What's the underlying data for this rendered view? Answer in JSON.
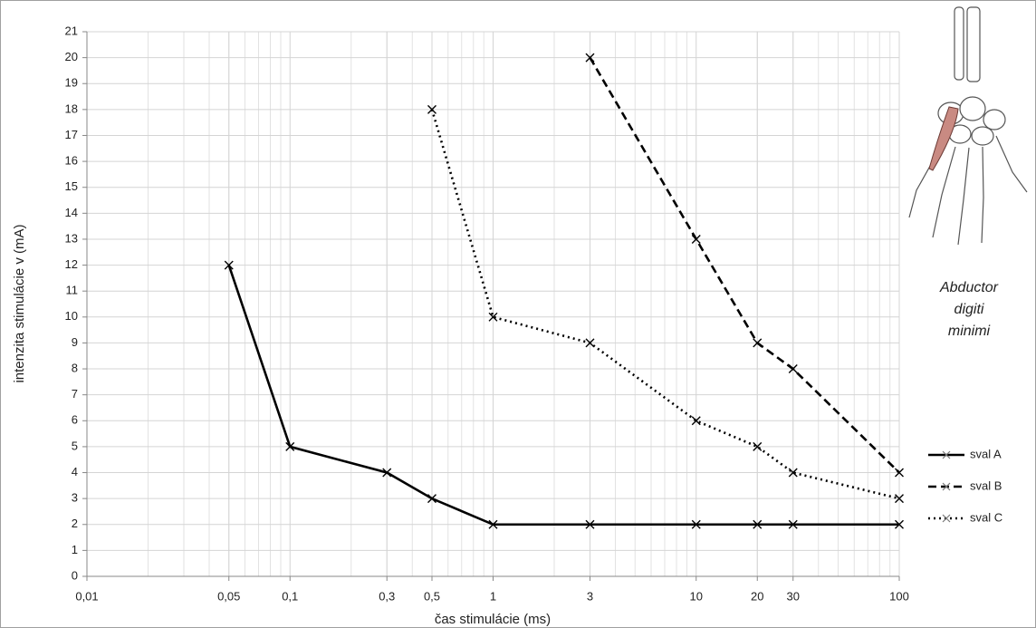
{
  "chart_data": {
    "type": "line",
    "xlabel": "čas stimulácie (ms)",
    "ylabel": "intenzita stimulácie v (mA)",
    "xscale": "log",
    "grid": true,
    "minor_grid": true,
    "legend": "right",
    "xlim": [
      0.01,
      100
    ],
    "xticks": [
      {
        "value": 0.01,
        "label": "0,01"
      },
      {
        "value": 0.05,
        "label": "0,05"
      },
      {
        "value": 0.1,
        "label": "0,1"
      },
      {
        "value": 0.3,
        "label": "0,3"
      },
      {
        "value": 0.5,
        "label": "0,5"
      },
      1,
      3,
      10,
      20,
      30,
      100
    ],
    "ylim": [
      0,
      21
    ],
    "yticks": [
      0,
      1,
      2,
      3,
      4,
      5,
      6,
      7,
      8,
      9,
      10,
      11,
      12,
      13,
      14,
      15,
      16,
      17,
      18,
      19,
      20,
      21
    ],
    "annotation": [
      "Abductor",
      "digiti",
      "minimi"
    ],
    "series": [
      {
        "name": "sval A",
        "color": "#000000",
        "dash": "solid",
        "x": [
          0.05,
          0.1,
          0.3,
          0.5,
          1,
          3,
          10,
          20,
          30,
          100
        ],
        "values": [
          12,
          5,
          4,
          3,
          2,
          2,
          2,
          2,
          2,
          2
        ]
      },
      {
        "name": "sval B",
        "color": "#000000",
        "dash": "dashed",
        "x": [
          3,
          10,
          20,
          30,
          100
        ],
        "values": [
          20,
          13,
          9,
          8,
          4
        ]
      },
      {
        "name": "sval C",
        "color": "#000000",
        "dash": "dotted",
        "x": [
          0.5,
          1,
          3,
          10,
          20,
          30,
          100
        ],
        "values": [
          18,
          10,
          9,
          6,
          5,
          4,
          3
        ]
      }
    ]
  }
}
